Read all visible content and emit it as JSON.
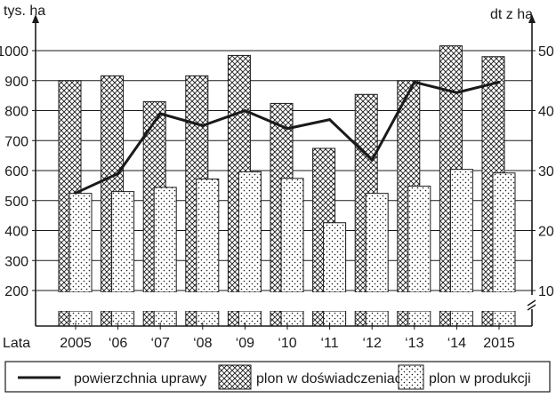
{
  "chart_data": {
    "type": "bar",
    "y_left_label": "tys. ha",
    "y_right_label": "dt z ha",
    "y_left_ticks": [
      200,
      300,
      400,
      500,
      600,
      700,
      800,
      900,
      1000
    ],
    "y_right_ticks": [
      10,
      20,
      30,
      40,
      50
    ],
    "y_left_range": [
      200,
      1000
    ],
    "y_right_range": [
      10,
      50
    ],
    "x_prefix": "Lata",
    "categories": [
      "2005",
      "‘06",
      "‘07",
      "‘08",
      "‘09",
      "‘10",
      "‘11",
      "‘12",
      "‘13",
      "‘14",
      "2015"
    ],
    "series": [
      {
        "name": "powierzchnia uprawy",
        "kind": "line",
        "axis": "left",
        "color": "#1a1a1a",
        "values": [
          525,
          590,
          790,
          750,
          800,
          740,
          770,
          635,
          895,
          860,
          895
        ]
      },
      {
        "name": "plon w doświadczeniach",
        "kind": "bar",
        "axis": "right",
        "pattern": "crosshatch",
        "values": [
          45.0,
          45.8,
          41.5,
          45.8,
          49.2,
          41.2,
          33.7,
          42.7,
          45.0,
          50.8,
          49.0
        ]
      },
      {
        "name": "plon w produkcji",
        "kind": "bar",
        "axis": "right",
        "pattern": "dots",
        "values": [
          26.2,
          26.5,
          27.2,
          28.6,
          29.8,
          28.7,
          21.3,
          26.2,
          27.4,
          30.2,
          29.6
        ]
      }
    ],
    "grid": true,
    "broken_axis": true,
    "legend_position": "bottom"
  }
}
